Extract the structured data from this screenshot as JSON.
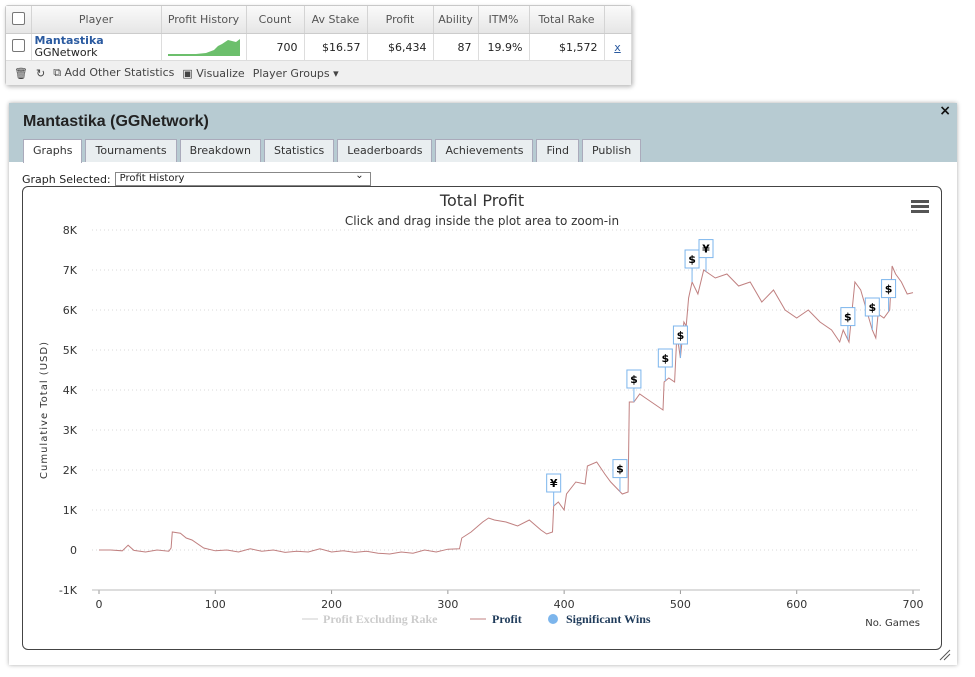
{
  "table": {
    "headers": [
      "Player",
      "Profit History",
      "Count",
      "Av Stake",
      "Profit",
      "Ability",
      "ITM%",
      "Total Rake"
    ],
    "row": {
      "player": "Mantastika",
      "site": "GGNetwork",
      "count": "700",
      "av_stake": "$16.57",
      "profit": "$6,434",
      "ability": "87",
      "itm": "19.9%",
      "total_rake": "$1,572",
      "remove": "x"
    },
    "toolbar": [
      "Add Other Statistics",
      "Visualize",
      "Player Groups"
    ]
  },
  "panel": {
    "title": "Mantastika (GGNetwork)",
    "close": "×",
    "tabs": [
      "Graphs",
      "Tournaments",
      "Breakdown",
      "Statistics",
      "Leaderboards",
      "Achievements",
      "Find",
      "Publish"
    ],
    "graph_selected_label": "Graph Selected:",
    "graph_selected_value": "Profit History"
  },
  "chart_data": {
    "type": "line",
    "title": "Total Profit",
    "subtitle": "Click and drag inside the plot area to zoom-in",
    "y_label": "Cumulative Total (USD)",
    "x_label": "No. Games",
    "x": [
      0,
      10,
      20,
      25,
      30,
      40,
      50,
      60,
      62,
      63,
      70,
      75,
      80,
      90,
      100,
      110,
      120,
      130,
      140,
      150,
      160,
      170,
      180,
      190,
      200,
      210,
      220,
      230,
      240,
      250,
      260,
      270,
      280,
      290,
      300,
      310,
      312,
      320,
      330,
      335,
      340,
      350,
      360,
      370,
      380,
      385,
      390,
      391,
      395,
      400,
      402,
      410,
      418,
      420,
      428,
      435,
      440,
      450,
      455,
      456,
      460,
      465,
      470,
      480,
      485,
      486,
      490,
      495,
      497,
      500,
      503,
      505,
      507,
      510,
      515,
      520,
      525,
      530,
      540,
      550,
      560,
      570,
      580,
      590,
      600,
      610,
      620,
      630,
      637,
      640,
      645,
      648,
      650,
      655,
      660,
      665,
      668,
      670,
      675,
      680,
      682,
      685,
      690,
      695,
      700
    ],
    "series": [
      {
        "name": "Profit Excluding Rake",
        "color": "#cccccc",
        "visible": false
      },
      {
        "name": "Profit",
        "color": "#c08080",
        "values": [
          0,
          0,
          -20,
          120,
          -10,
          -50,
          0,
          -30,
          50,
          450,
          420,
          300,
          250,
          50,
          -20,
          0,
          -50,
          30,
          -30,
          0,
          -60,
          -30,
          -50,
          30,
          -50,
          -20,
          -60,
          -30,
          -80,
          -100,
          -50,
          -80,
          0,
          -50,
          20,
          30,
          300,
          450,
          700,
          800,
          750,
          700,
          600,
          750,
          500,
          400,
          450,
          1100,
          1200,
          1000,
          1400,
          1700,
          1650,
          2100,
          2200,
          1900,
          1700,
          1400,
          1450,
          3700,
          3700,
          3900,
          3800,
          3600,
          3500,
          4200,
          4300,
          4200,
          5400,
          4800,
          5700,
          5600,
          6300,
          6700,
          6400,
          7000,
          6900,
          6800,
          6900,
          6600,
          6700,
          6200,
          6500,
          6000,
          5800,
          6000,
          5700,
          5500,
          5200,
          5500,
          5200,
          6100,
          6700,
          6500,
          6000,
          5500,
          5300,
          5900,
          5800,
          6000,
          7100,
          6900,
          6700,
          6400,
          6434
        ]
      }
    ],
    "significant_wins": {
      "name": "Significant Wins",
      "color": "#7cb5ec",
      "x": [
        391,
        448,
        460,
        487,
        500,
        510,
        522,
        644,
        665,
        679
      ],
      "labels": [
        "¥",
        "$",
        "$",
        "$",
        "$",
        "$",
        "¥",
        "$",
        "$",
        "$"
      ]
    },
    "xlim": [
      0,
      700
    ],
    "xticks": [
      0,
      100,
      200,
      300,
      400,
      500,
      600,
      700
    ],
    "ylim": [
      -1000,
      8000
    ],
    "yticks": [
      {
        "value": -1000,
        "label": "-1K"
      },
      0,
      {
        "value": 1000,
        "label": "1K"
      },
      {
        "value": 2000,
        "label": "2K"
      },
      {
        "value": 3000,
        "label": "3K"
      },
      {
        "value": 4000,
        "label": "4K"
      },
      {
        "value": 5000,
        "label": "5K"
      },
      {
        "value": 6000,
        "label": "6K"
      },
      {
        "value": 7000,
        "label": "7K"
      },
      {
        "value": 8000,
        "label": "8K"
      }
    ],
    "grid": true
  }
}
